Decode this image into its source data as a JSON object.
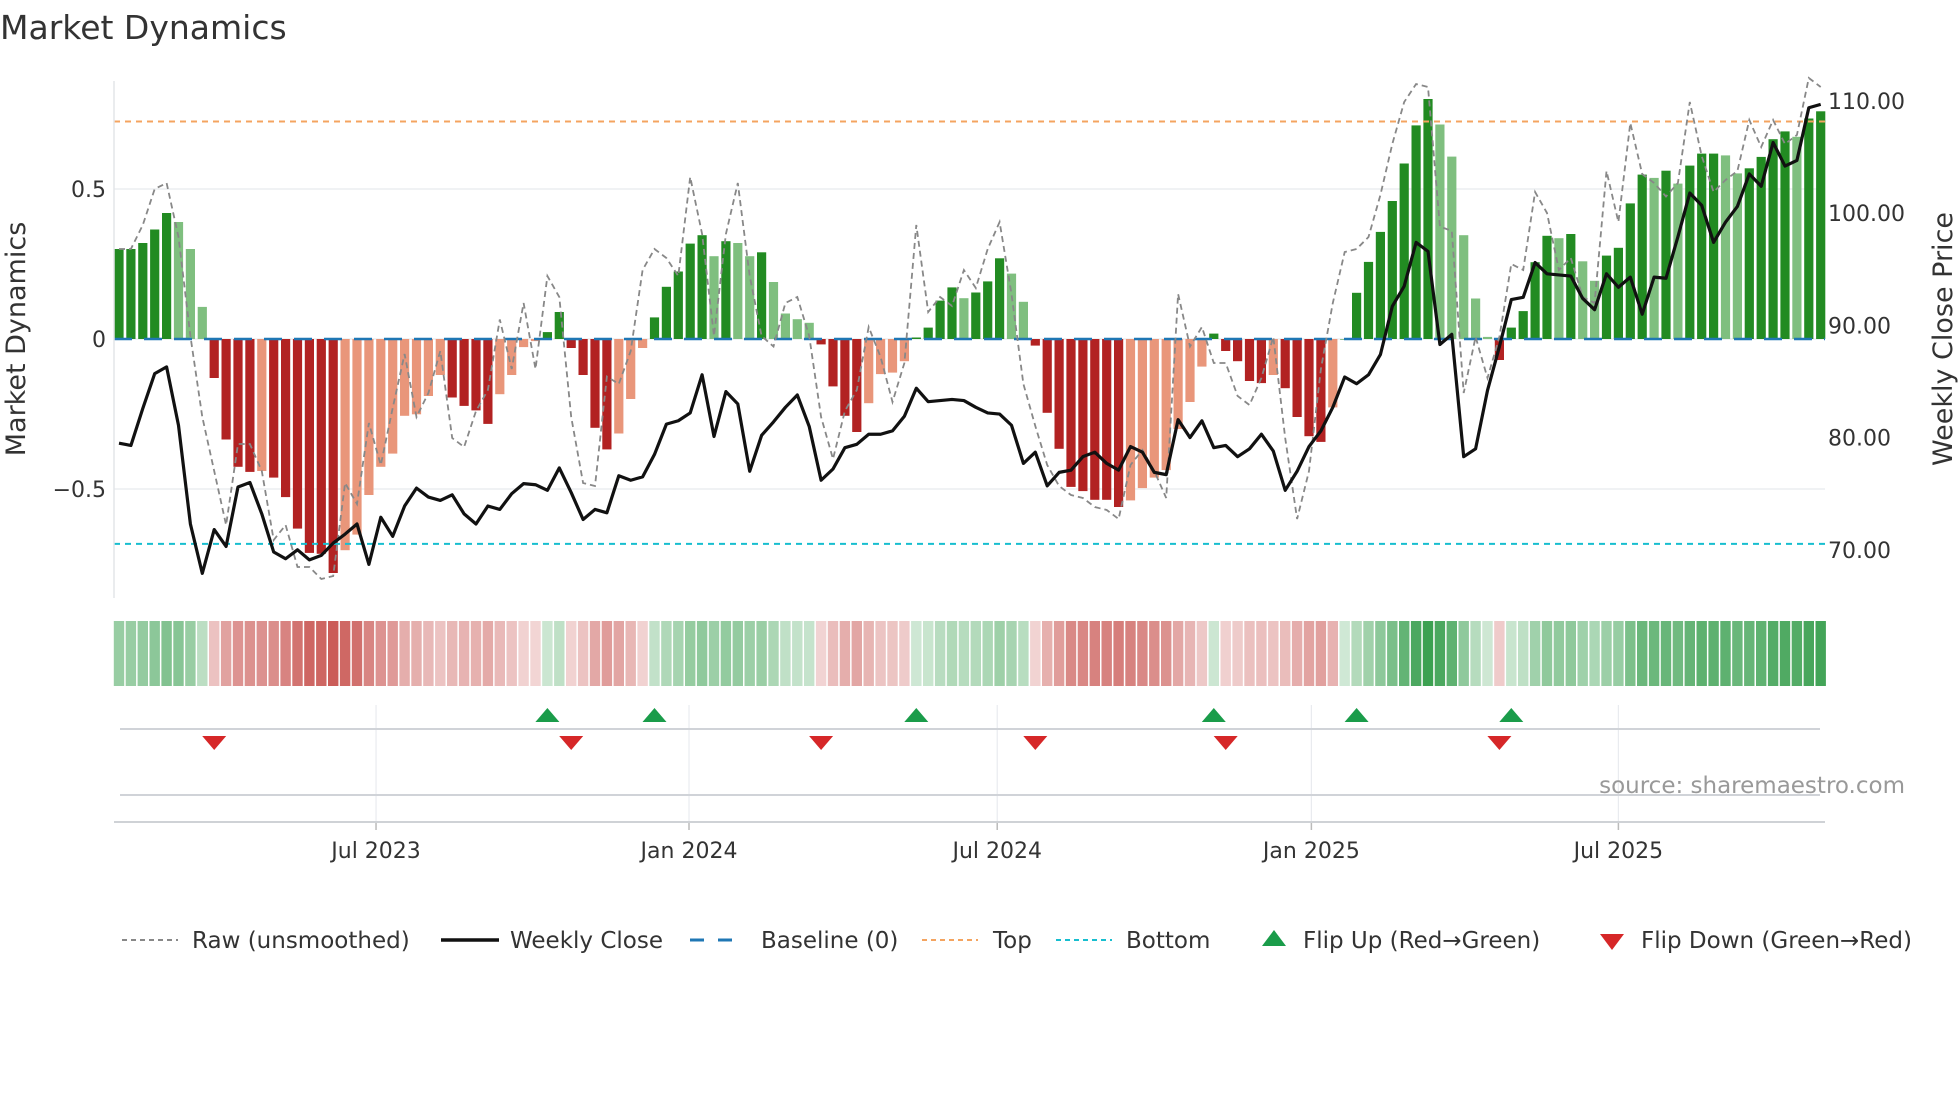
{
  "chart_data": {
    "type": "bar",
    "title": "Market Dynamics",
    "ylabel_left": "Market Dynamics",
    "ylabel_right": "Weekly Close Price",
    "source": "source: sharemaestro.com",
    "start_week": "2023-01-27",
    "ylim_left": [
      -0.78,
      0.87
    ],
    "ylim_right": [
      64,
      112
    ],
    "left_ticks": [
      {
        "v": 0.5,
        "label": "0.5"
      },
      {
        "v": 0,
        "label": "0"
      },
      {
        "v": -0.5,
        "label": "−0.5"
      }
    ],
    "right_ticks": [
      {
        "v": 110,
        "label": "110.00"
      },
      {
        "v": 100,
        "label": "100.00"
      },
      {
        "v": 90,
        "label": "90.00"
      },
      {
        "v": 80,
        "label": "80.00"
      },
      {
        "v": 70,
        "label": "70.00"
      }
    ],
    "x_ticks": [
      {
        "week": 21.6,
        "label": "Jul 2023"
      },
      {
        "week": 47.9,
        "label": "Jan 2024"
      },
      {
        "week": 73.8,
        "label": "Jul 2024"
      },
      {
        "week": 100.2,
        "label": "Jan 2025"
      },
      {
        "week": 126,
        "label": "Jul 2025"
      }
    ],
    "top_level": 0.725,
    "bottom_level": -0.683,
    "baseline": 0,
    "colors": {
      "green_dark": "#228b22",
      "green_light": "#7fbf7f",
      "red_dark": "#b22222",
      "red_light": "#e9967a",
      "baseline": "#1f77b4",
      "top": "#f4a460",
      "bottom": "#17becf",
      "flip_up": "#1a9c4a",
      "flip_down": "#d62728",
      "raw": "#888888",
      "close": "#111111"
    },
    "momentum": [
      0.3,
      0.3,
      0.32,
      0.365,
      0.42,
      0.39,
      0.3,
      0.107,
      -0.13,
      -0.335,
      -0.426,
      -0.443,
      -0.44,
      -0.462,
      -0.527,
      -0.632,
      -0.713,
      -0.716,
      -0.78,
      -0.704,
      -0.652,
      -0.52,
      -0.426,
      -0.382,
      -0.256,
      -0.251,
      -0.19,
      -0.12,
      -0.195,
      -0.223,
      -0.238,
      -0.283,
      -0.184,
      -0.12,
      -0.027,
      -0.007,
      0.023,
      0.09,
      -0.03,
      -0.12,
      -0.296,
      -0.368,
      -0.315,
      -0.2,
      -0.03,
      0.072,
      0.174,
      0.225,
      0.318,
      0.346,
      0.276,
      0.326,
      0.32,
      0.276,
      0.289,
      0.19,
      0.085,
      0.066,
      0.054,
      -0.018,
      -0.158,
      -0.256,
      -0.31,
      -0.214,
      -0.117,
      -0.112,
      -0.074,
      0.005,
      0.038,
      0.128,
      0.172,
      0.136,
      0.155,
      0.192,
      0.269,
      0.218,
      0.124,
      -0.022,
      -0.246,
      -0.366,
      -0.493,
      -0.507,
      -0.536,
      -0.536,
      -0.56,
      -0.538,
      -0.497,
      -0.462,
      -0.437,
      -0.3,
      -0.21,
      -0.092,
      0.018,
      -0.04,
      -0.074,
      -0.14,
      -0.147,
      -0.12,
      -0.164,
      -0.26,
      -0.324,
      -0.343,
      -0.228,
      0,
      0.154,
      0.257,
      0.357,
      0.46,
      0.585,
      0.712,
      0.8,
      0.715,
      0.608,
      0.346,
      0.135,
      0.007,
      -0.07,
      0.038,
      0.093,
      0.256,
      0.344,
      0.336,
      0.35,
      0.259,
      0.194,
      0.278,
      0.304,
      0.452,
      0.548,
      0.537,
      0.561,
      0.518,
      0.578,
      0.618,
      0.618,
      0.612,
      0.552,
      0.569,
      0.607,
      0.666,
      0.692,
      0.674,
      0.735,
      0.759
    ],
    "raw": [
      0.3,
      0.3,
      0.38,
      0.5,
      0.52,
      0.34,
      0.01,
      -0.26,
      -0.44,
      -0.62,
      -0.35,
      -0.35,
      -0.44,
      -0.67,
      -0.62,
      -0.76,
      -0.76,
      -0.8,
      -0.79,
      -0.48,
      -0.55,
      -0.28,
      -0.42,
      -0.23,
      -0.05,
      -0.26,
      -0.18,
      -0.04,
      -0.33,
      -0.36,
      -0.24,
      -0.17,
      0.065,
      -0.1,
      0.12,
      -0.1,
      0.21,
      0.14,
      -0.26,
      -0.48,
      -0.49,
      -0.125,
      -0.15,
      -0.04,
      0.23,
      0.3,
      0.27,
      0.21,
      0.54,
      0.35,
      0.01,
      0.35,
      0.52,
      0.21,
      0.01,
      -0.025,
      0.12,
      0.14,
      0.01,
      -0.26,
      -0.4,
      -0.24,
      -0.17,
      0.04,
      -0.06,
      -0.21,
      -0.08,
      0.38,
      0.09,
      0.14,
      0.11,
      0.23,
      0.17,
      0.3,
      0.39,
      0.15,
      -0.15,
      -0.29,
      -0.42,
      -0.49,
      -0.52,
      -0.53,
      -0.56,
      -0.57,
      -0.6,
      -0.42,
      -0.37,
      -0.44,
      -0.53,
      0.15,
      -0.025,
      0.04,
      -0.08,
      -0.08,
      -0.19,
      -0.22,
      -0.13,
      0.007,
      -0.33,
      -0.6,
      -0.44,
      -0.1,
      0.12,
      0.29,
      0.3,
      0.34,
      0.48,
      0.65,
      0.79,
      0.85,
      0.84,
      0.375,
      0.36,
      -0.18,
      0.007,
      -0.13,
      0.007,
      0.25,
      0.23,
      0.49,
      0.42,
      0.23,
      0.27,
      0.14,
      0.12,
      0.56,
      0.39,
      0.72,
      0.55,
      0.52,
      0.475,
      0.52,
      0.79,
      0.61,
      0.49,
      0.53,
      0.56,
      0.73,
      0.64,
      0.73,
      0.65,
      0.68,
      0.87,
      0.84
    ],
    "weekly_close": [
      79.5,
      79.3,
      82.6,
      85.7,
      86.3,
      81.1,
      72.3,
      67.9,
      71.8,
      70.3,
      75.6,
      76.0,
      73.2,
      69.8,
      69.2,
      70.0,
      69.1,
      69.5,
      70.6,
      71.4,
      72.3,
      68.7,
      72.9,
      71.2,
      73.9,
      75.5,
      74.7,
      74.4,
      74.9,
      73.2,
      72.3,
      73.9,
      73.6,
      75.0,
      75.9,
      75.8,
      75.3,
      77.3,
      75.1,
      72.7,
      73.6,
      73.3,
      76.6,
      76.2,
      76.5,
      78.5,
      81.2,
      81.5,
      82.2,
      85.6,
      80.1,
      84.1,
      83.0,
      77.0,
      80.2,
      81.4,
      82.7,
      83.8,
      81.0,
      76.2,
      77.2,
      79.1,
      79.4,
      80.3,
      80.3,
      80.6,
      81.9,
      84.4,
      83.2,
      83.3,
      83.4,
      83.3,
      82.7,
      82.2,
      82.1,
      81.1,
      77.7,
      78.7,
      75.7,
      76.9,
      77.1,
      78.3,
      78.7,
      77.7,
      77.1,
      79.2,
      78.7,
      76.9,
      76.7,
      81.6,
      80.0,
      81.5,
      79.1,
      79.3,
      78.3,
      79.0,
      80.3,
      78.8,
      75.3,
      77.0,
      79.2,
      80.6,
      82.7,
      85.4,
      84.8,
      85.6,
      87.4,
      91.7,
      93.5,
      97.4,
      96.6,
      88.3,
      89.2,
      78.3,
      79.0,
      84.2,
      88.1,
      92.3,
      92.5,
      95.6,
      94.6,
      94.5,
      94.4,
      92.4,
      91.4,
      94.6,
      93.4,
      94.3,
      91.0,
      94.3,
      94.2,
      97.9,
      101.8,
      100.7,
      97.4,
      99.2,
      100.6,
      103.5,
      102.4,
      106.3,
      104.2,
      104.7,
      109.4,
      109.7
    ],
    "flip_up_weeks": [
      36,
      45,
      67,
      92,
      104,
      117
    ],
    "flip_down_weeks": [
      8,
      38,
      59,
      77,
      93,
      116
    ],
    "legend": [
      {
        "key": "raw",
        "label": "Raw (unsmoothed)"
      },
      {
        "key": "close",
        "label": "Weekly Close"
      },
      {
        "key": "baseline",
        "label": "Baseline (0)"
      },
      {
        "key": "top",
        "label": "Top"
      },
      {
        "key": "bottom",
        "label": "Bottom"
      },
      {
        "key": "flip_up",
        "label": "Flip Up (Red→Green)"
      },
      {
        "key": "flip_down",
        "label": "Flip Down (Green→Red)"
      }
    ],
    "legend_position": "bottom"
  }
}
